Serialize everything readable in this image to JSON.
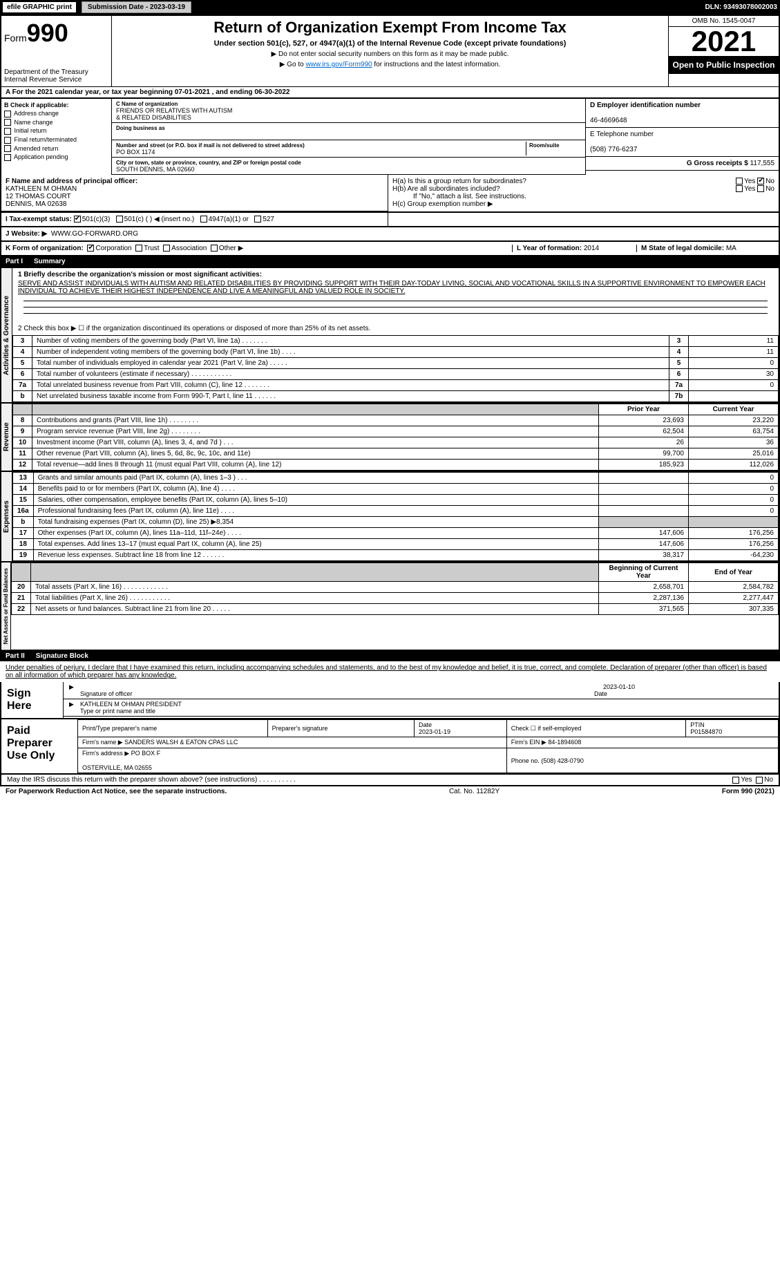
{
  "topbar": {
    "efile": "efile GRAPHIC print",
    "submission_btn": "Submission Date - 2023-03-19",
    "dln": "DLN: 93493078002003"
  },
  "header": {
    "form_label": "Form",
    "form_number": "990",
    "dept": "Department of the Treasury\nInternal Revenue Service",
    "title": "Return of Organization Exempt From Income Tax",
    "subtitle": "Under section 501(c), 527, or 4947(a)(1) of the Internal Revenue Code (except private foundations)",
    "note1": "▶ Do not enter social security numbers on this form as it may be made public.",
    "note2_pre": "▶ Go to ",
    "note2_link": "www.irs.gov/Form990",
    "note2_post": " for instructions and the latest information.",
    "omb": "OMB No. 1545-0047",
    "year": "2021",
    "open_public": "Open to Public Inspection"
  },
  "row_a": "A For the 2021 calendar year, or tax year beginning 07-01-2021     , and ending 06-30-2022",
  "col_b": {
    "label": "B Check if applicable:",
    "items": [
      "Address change",
      "Name change",
      "Initial return",
      "Final return/terminated",
      "Amended return",
      "Application pending"
    ]
  },
  "col_c": {
    "name_label": "C Name of organization",
    "name": "FRIENDS OR RELATIVES WITH AUTISM\n& RELATED DISABILITIES",
    "dba_label": "Doing business as",
    "dba": "",
    "addr_label": "Number and street (or P.O. box if mail is not delivered to street address)",
    "addr": "PO BOX 1174",
    "room_label": "Room/suite",
    "city_label": "City or town, state or province, country, and ZIP or foreign postal code",
    "city": "SOUTH DENNIS, MA  02660"
  },
  "col_d": {
    "label": "D Employer identification number",
    "value": "46-4669648"
  },
  "col_e": {
    "label": "E Telephone number",
    "value": "(508) 776-6237"
  },
  "col_g": {
    "label": "G Gross receipts $",
    "value": "117,555"
  },
  "col_f": {
    "label": "F Name and address of principal officer:",
    "name": "KATHLEEN M OHMAN",
    "addr1": "12 THOMAS COURT",
    "addr2": "DENNIS, MA  02638"
  },
  "col_h": {
    "a": "H(a)  Is this a group return for subordinates?",
    "b": "H(b)  Are all subordinates included?",
    "b_note": "If \"No,\" attach a list. See instructions.",
    "c": "H(c)  Group exemption number ▶",
    "yes": "Yes",
    "no": "No"
  },
  "row_i": {
    "label": "I    Tax-exempt status:",
    "opts": [
      "501(c)(3)",
      "501(c) (  ) ◀ (insert no.)",
      "4947(a)(1) or",
      "527"
    ]
  },
  "row_j": {
    "label": "J    Website: ▶",
    "value": "WWW.GO-FORWARD.ORG"
  },
  "row_k": {
    "label": "K Form of organization:",
    "opts": [
      "Corporation",
      "Trust",
      "Association",
      "Other ▶"
    ]
  },
  "row_l": {
    "label": "L Year of formation:",
    "value": "2014"
  },
  "row_m": {
    "label": "M State of legal domicile:",
    "value": "MA"
  },
  "part_i": {
    "hdr": "Part I",
    "title": "Summary",
    "q1": "1  Briefly describe the organization's mission or most significant activities:",
    "mission": "SERVE AND ASSIST INDIVIDUALS WITH AUTISM AND RELATED DISABILITIES BY PROVIDING SUPPORT WITH THEIR DAY-TODAY LIVING, SOCIAL AND VOCATIONAL SKILLS IN A SUPPORTIVE ENVIRONMENT TO EMPOWER EACH INDIVIDUAL TO ACHIEVE THEIR HIGHEST INDEPENDENCE AND LIVE A MEANINGFUL AND VALUED ROLE IN SOCIETY.",
    "q2": "2   Check this box ▶ ☐ if the organization discontinued its operations or disposed of more than 25% of its net assets.",
    "rows_gov": [
      {
        "n": "3",
        "t": "Number of voting members of the governing body (Part VI, line 1a)   .    .    .    .    .    .    .",
        "box": "3",
        "v": "11"
      },
      {
        "n": "4",
        "t": "Number of independent voting members of the governing body (Part VI, line 1b)  .    .    .    .",
        "box": "4",
        "v": "11"
      },
      {
        "n": "5",
        "t": "Total number of individuals employed in calendar year 2021 (Part V, line 2a)  .    .    .    .    .",
        "box": "5",
        "v": "0"
      },
      {
        "n": "6",
        "t": "Total number of volunteers (estimate if necessary)    .    .    .    .    .    .    .    .    .    .    .",
        "box": "6",
        "v": "30"
      },
      {
        "n": "7a",
        "t": "Total unrelated business revenue from Part VIII, column (C), line 12  .    .    .    .    .    .    .",
        "box": "7a",
        "v": "0"
      },
      {
        "n": "b",
        "t": "Net unrelated business taxable income from Form 990-T, Part I, line 11   .    .    .    .    .    .",
        "box": "7b",
        "v": ""
      }
    ],
    "prior_hdr": "Prior Year",
    "current_hdr": "Current Year",
    "rows_rev": [
      {
        "n": "8",
        "t": "Contributions and grants (Part VIII, line 1h)  .    .    .    .    .    .    .    .",
        "p": "23,693",
        "c": "23,220"
      },
      {
        "n": "9",
        "t": "Program service revenue (Part VIII, line 2g)  .    .    .    .    .    .    .    .",
        "p": "62,504",
        "c": "63,754"
      },
      {
        "n": "10",
        "t": "Investment income (Part VIII, column (A), lines 3, 4, and 7d )   .    .    .",
        "p": "26",
        "c": "36"
      },
      {
        "n": "11",
        "t": "Other revenue (Part VIII, column (A), lines 5, 6d, 8c, 9c, 10c, and 11e)",
        "p": "99,700",
        "c": "25,016"
      },
      {
        "n": "12",
        "t": "Total revenue—add lines 8 through 11 (must equal Part VIII, column (A), line 12)",
        "p": "185,923",
        "c": "112,026"
      }
    ],
    "rows_exp": [
      {
        "n": "13",
        "t": "Grants and similar amounts paid (Part IX, column (A), lines 1–3 )  .    .    .",
        "p": "",
        "c": "0"
      },
      {
        "n": "14",
        "t": "Benefits paid to or for members (Part IX, column (A), line 4)  .    .    .    .",
        "p": "",
        "c": "0"
      },
      {
        "n": "15",
        "t": "Salaries, other compensation, employee benefits (Part IX, column (A), lines 5–10)",
        "p": "",
        "c": "0"
      },
      {
        "n": "16a",
        "t": "Professional fundraising fees (Part IX, column (A), line 11e)   .    .    .    .",
        "p": "",
        "c": "0"
      },
      {
        "n": "b",
        "t": "Total fundraising expenses (Part IX, column (D), line 25) ▶8,354",
        "p": "grey",
        "c": "grey"
      },
      {
        "n": "17",
        "t": "Other expenses (Part IX, column (A), lines 11a–11d, 11f–24e)   .    .    .    .",
        "p": "147,606",
        "c": "176,256"
      },
      {
        "n": "18",
        "t": "Total expenses. Add lines 13–17 (must equal Part IX, column (A), line 25)",
        "p": "147,606",
        "c": "176,256"
      },
      {
        "n": "19",
        "t": "Revenue less expenses. Subtract line 18 from line 12  .    .    .    .    .    .",
        "p": "38,317",
        "c": "-64,230"
      }
    ],
    "begin_hdr": "Beginning of Current Year",
    "end_hdr": "End of Year",
    "rows_net": [
      {
        "n": "20",
        "t": "Total assets (Part X, line 16)  .    .    .    .    .    .    .    .    .    .    .    .",
        "p": "2,658,701",
        "c": "2,584,782"
      },
      {
        "n": "21",
        "t": "Total liabilities (Part X, line 26)   .    .    .    .    .    .    .    .    .    .    .",
        "p": "2,287,136",
        "c": "2,277,447"
      },
      {
        "n": "22",
        "t": "Net assets or fund balances. Subtract line 21 from line 20  .    .    .    .    .",
        "p": "371,565",
        "c": "307,335"
      }
    ],
    "side_gov": "Activities & Governance",
    "side_rev": "Revenue",
    "side_exp": "Expenses",
    "side_net": "Net Assets or Fund Balances"
  },
  "part_ii": {
    "hdr": "Part II",
    "title": "Signature Block",
    "decl": "Under penalties of perjury, I declare that I have examined this return, including accompanying schedules and statements, and to the best of my knowledge and belief, it is true, correct, and complete. Declaration of preparer (other than officer) is based on all information of which preparer has any knowledge.",
    "sign_here": "Sign Here",
    "sig_date": "2023-01-10",
    "sig_officer": "Signature of officer",
    "sig_date_label": "Date",
    "name_title": "KATHLEEN M OHMAN  PRESIDENT",
    "name_label": "Type or print name and title",
    "paid": "Paid Preparer Use Only",
    "prep_cols": [
      "Print/Type preparer's name",
      "Preparer's signature",
      "Date",
      "Check ☐ if self-employed",
      "PTIN"
    ],
    "prep_date": "2023-01-19",
    "ptin": "P01584870",
    "firm_name_label": "Firm's name    ▶",
    "firm_name": "SANDERS WALSH & EATON CPAS LLC",
    "firm_ein_label": "Firm's EIN ▶",
    "firm_ein": "84-1894608",
    "firm_addr_label": "Firm's address ▶",
    "firm_addr": "PO BOX F\n\nOSTERVILLE, MA  02655",
    "phone_label": "Phone no.",
    "phone": "(508) 428-0790",
    "discuss": "May the IRS discuss this return with the preparer shown above? (see instructions)   .    .    .    .    .    .    .    .    .    .",
    "yes": "Yes",
    "no": "No"
  },
  "footer": {
    "pra": "For Paperwork Reduction Act Notice, see the separate instructions.",
    "cat": "Cat. No. 11282Y",
    "form": "Form 990 (2021)"
  }
}
